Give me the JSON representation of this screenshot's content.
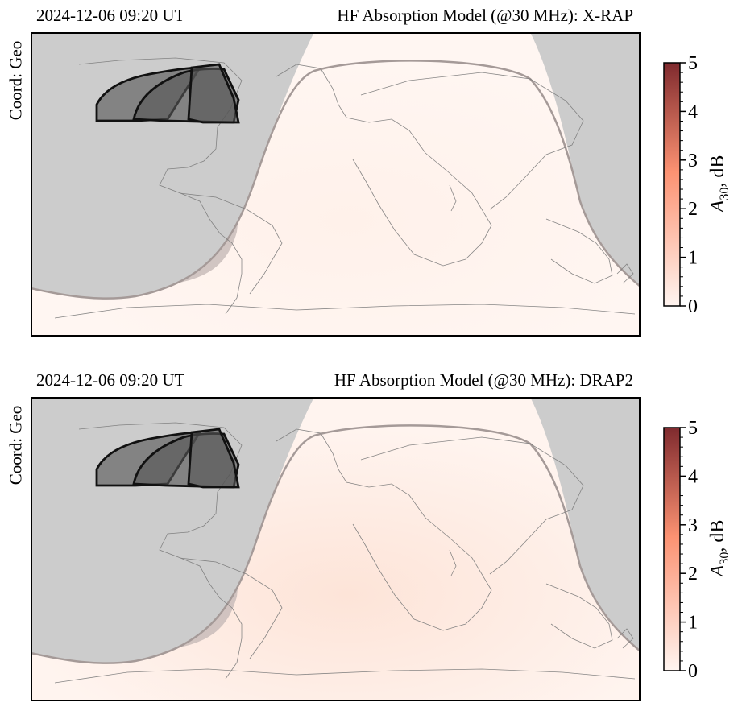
{
  "panels": [
    {
      "timestamp": "2024-12-06 09:20 UT",
      "title": "HF Absorption Model (@30 MHz):  X-RAP",
      "coord_label": "Coord: Geo",
      "colorbar": {
        "label_main": "A",
        "label_sub": "30",
        "label_tail": ", dB",
        "ticks": [
          "0",
          "1",
          "2",
          "3",
          "4",
          "5"
        ],
        "range": [
          0,
          5
        ],
        "color_low": "#fff5f0",
        "color_mid": "#fc9272",
        "color_high": "#7f2a2e"
      }
    },
    {
      "timestamp": "2024-12-06 09:20 UT",
      "title": "HF Absorption Model (@30 MHz):  DRAP2",
      "coord_label": "Coord: Geo",
      "colorbar": {
        "label_main": "A",
        "label_sub": "30",
        "label_tail": ", dB",
        "ticks": [
          "0",
          "1",
          "2",
          "3",
          "4",
          "5"
        ],
        "range": [
          0,
          5
        ],
        "color_low": "#fff5f0",
        "color_mid": "#fc9272",
        "color_high": "#7f2a2e"
      }
    }
  ],
  "chart_data": [
    {
      "type": "heatmap",
      "projection": "equirectangular",
      "coordinates": "geographic",
      "xlim": [
        -180,
        180
      ],
      "ylim": [
        -90,
        90
      ],
      "model": "X-RAP",
      "frequency_MHz": 30,
      "value_range_dB": [
        0,
        5
      ],
      "dayside_absorption_dB": 0.1,
      "night_shade_color": "#cccccc",
      "terminator_band_color": "#c9bcba",
      "fov_color": "#555555"
    },
    {
      "type": "heatmap",
      "projection": "equirectangular",
      "coordinates": "geographic",
      "xlim": [
        -180,
        180
      ],
      "ylim": [
        -90,
        90
      ],
      "model": "DRAP2",
      "frequency_MHz": 30,
      "value_range_dB": [
        0,
        5
      ],
      "dayside_absorption_dB": 0.25,
      "night_shade_color": "#cccccc",
      "terminator_band_color": "#c9bcba",
      "fov_color": "#555555"
    }
  ]
}
